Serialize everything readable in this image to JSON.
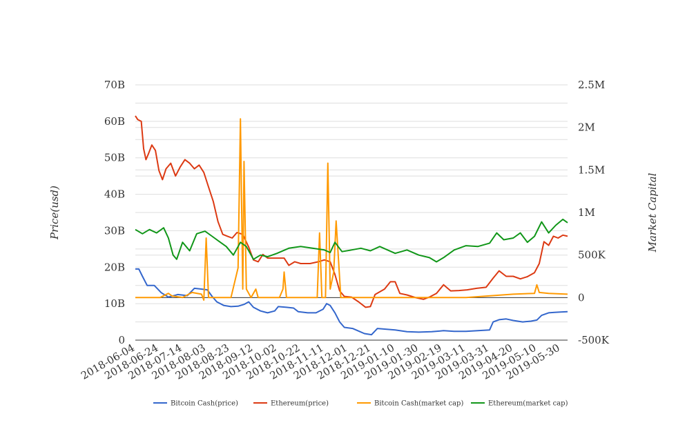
{
  "chart_data": {
    "type": "line",
    "title": "",
    "xlabel": "",
    "ylabel_left": "Price(usd)",
    "ylabel_right": "Market Capital",
    "left_axis": {
      "ylim": [
        0,
        70
      ],
      "ticks": [
        0,
        10,
        20,
        30,
        40,
        50,
        60,
        70
      ],
      "tick_labels": [
        "0",
        "10B",
        "20B",
        "30B",
        "40B",
        "50B",
        "60B",
        "70B"
      ]
    },
    "right_axis": {
      "ylim": [
        -500000,
        2500000
      ],
      "ticks": [
        -500000,
        0,
        500000,
        1000000,
        1500000,
        2000000,
        2500000
      ],
      "tick_labels": [
        "-500K",
        "0",
        "500K",
        "1M",
        "1.5M",
        "2M",
        "2.5M"
      ]
    },
    "x_range": [
      "2018-06-04",
      "2019-06-05"
    ],
    "x_tick_labels": [
      "2018-06-04",
      "2018-06-24",
      "2018-07-14",
      "2018-08-03",
      "2018-08-23",
      "2018-09-12",
      "2018-10-02",
      "2018-10-22",
      "2018-11-11",
      "2018-12-01",
      "2018-12-21",
      "2019-01-10",
      "2019-01-30",
      "2019-02-19",
      "2019-03-11",
      "2019-03-31",
      "2019-04-20",
      "2019-05-10",
      "2019-05-30"
    ],
    "grid": true,
    "legend_position": "bottom",
    "series": [
      {
        "name": "Bitcoin Cash(price)",
        "axis": "left",
        "color": "#3366cc",
        "points": [
          [
            "2018-06-04",
            19.5
          ],
          [
            "2018-06-07",
            19.5
          ],
          [
            "2018-06-10",
            17.5
          ],
          [
            "2018-06-14",
            15.0
          ],
          [
            "2018-06-20",
            15.0
          ],
          [
            "2018-06-26",
            13.0
          ],
          [
            "2018-07-02",
            11.8
          ],
          [
            "2018-07-10",
            12.5
          ],
          [
            "2018-07-18",
            12.2
          ],
          [
            "2018-07-24",
            14.2
          ],
          [
            "2018-07-30",
            14.0
          ],
          [
            "2018-08-04",
            13.8
          ],
          [
            "2018-08-08",
            12.0
          ],
          [
            "2018-08-12",
            10.5
          ],
          [
            "2018-08-18",
            9.5
          ],
          [
            "2018-08-24",
            9.2
          ],
          [
            "2018-08-30",
            9.3
          ],
          [
            "2018-09-04",
            9.8
          ],
          [
            "2018-09-08",
            10.5
          ],
          [
            "2018-09-12",
            9.0
          ],
          [
            "2018-09-18",
            8.0
          ],
          [
            "2018-09-24",
            7.5
          ],
          [
            "2018-09-30",
            8.0
          ],
          [
            "2018-10-03",
            9.2
          ],
          [
            "2018-10-10",
            9.0
          ],
          [
            "2018-10-16",
            8.8
          ],
          [
            "2018-10-20",
            7.8
          ],
          [
            "2018-10-28",
            7.5
          ],
          [
            "2018-11-04",
            7.5
          ],
          [
            "2018-11-10",
            8.5
          ],
          [
            "2018-11-13",
            10.0
          ],
          [
            "2018-11-16",
            9.5
          ],
          [
            "2018-11-20",
            7.5
          ],
          [
            "2018-11-24",
            5.0
          ],
          [
            "2018-11-28",
            3.5
          ],
          [
            "2018-12-05",
            3.2
          ],
          [
            "2018-12-10",
            2.5
          ],
          [
            "2018-12-15",
            1.8
          ],
          [
            "2018-12-21",
            1.5
          ],
          [
            "2018-12-26",
            3.2
          ],
          [
            "2019-01-02",
            3.0
          ],
          [
            "2019-01-10",
            2.8
          ],
          [
            "2019-01-20",
            2.3
          ],
          [
            "2019-01-30",
            2.2
          ],
          [
            "2019-02-10",
            2.3
          ],
          [
            "2019-02-20",
            2.6
          ],
          [
            "2019-03-01",
            2.4
          ],
          [
            "2019-03-11",
            2.4
          ],
          [
            "2019-03-21",
            2.6
          ],
          [
            "2019-03-31",
            2.8
          ],
          [
            "2019-04-03",
            5.0
          ],
          [
            "2019-04-08",
            5.6
          ],
          [
            "2019-04-14",
            5.8
          ],
          [
            "2019-04-20",
            5.4
          ],
          [
            "2019-04-28",
            5.0
          ],
          [
            "2019-05-05",
            5.2
          ],
          [
            "2019-05-10",
            5.5
          ],
          [
            "2019-05-14",
            6.8
          ],
          [
            "2019-05-20",
            7.5
          ],
          [
            "2019-05-25",
            7.6
          ],
          [
            "2019-05-30",
            7.7
          ],
          [
            "2019-06-05",
            7.8
          ]
        ]
      },
      {
        "name": "Ethereum(price)",
        "axis": "left",
        "color": "#dc3912",
        "points": [
          [
            "2018-06-04",
            61.5
          ],
          [
            "2018-06-06",
            60.5
          ],
          [
            "2018-06-09",
            60.0
          ],
          [
            "2018-06-11",
            52.5
          ],
          [
            "2018-06-13",
            49.5
          ],
          [
            "2018-06-15",
            51.0
          ],
          [
            "2018-06-18",
            53.5
          ],
          [
            "2018-06-21",
            52.0
          ],
          [
            "2018-06-24",
            46.5
          ],
          [
            "2018-06-27",
            44.0
          ],
          [
            "2018-06-30",
            47.0
          ],
          [
            "2018-07-04",
            48.5
          ],
          [
            "2018-07-08",
            45.0
          ],
          [
            "2018-07-12",
            47.5
          ],
          [
            "2018-07-16",
            49.5
          ],
          [
            "2018-07-20",
            48.5
          ],
          [
            "2018-07-24",
            47.0
          ],
          [
            "2018-07-28",
            48.0
          ],
          [
            "2018-08-01",
            46.0
          ],
          [
            "2018-08-05",
            42.0
          ],
          [
            "2018-08-09",
            38.0
          ],
          [
            "2018-08-13",
            32.5
          ],
          [
            "2018-08-17",
            29.0
          ],
          [
            "2018-08-21",
            28.5
          ],
          [
            "2018-08-25",
            28.0
          ],
          [
            "2018-08-29",
            29.5
          ],
          [
            "2018-09-03",
            29.0
          ],
          [
            "2018-09-08",
            25.5
          ],
          [
            "2018-09-12",
            22.0
          ],
          [
            "2018-09-16",
            21.5
          ],
          [
            "2018-09-20",
            23.5
          ],
          [
            "2018-09-24",
            22.5
          ],
          [
            "2018-09-28",
            22.5
          ],
          [
            "2018-10-02",
            22.5
          ],
          [
            "2018-10-08",
            22.5
          ],
          [
            "2018-10-12",
            20.5
          ],
          [
            "2018-10-17",
            21.5
          ],
          [
            "2018-10-22",
            21.0
          ],
          [
            "2018-10-30",
            21.0
          ],
          [
            "2018-11-06",
            21.5
          ],
          [
            "2018-11-11",
            22.0
          ],
          [
            "2018-11-16",
            21.5
          ],
          [
            "2018-11-20",
            18.0
          ],
          [
            "2018-11-24",
            13.5
          ],
          [
            "2018-11-28",
            12.0
          ],
          [
            "2018-12-04",
            11.8
          ],
          [
            "2018-12-10",
            10.5
          ],
          [
            "2018-12-16",
            9.0
          ],
          [
            "2018-12-20",
            9.2
          ],
          [
            "2018-12-24",
            12.5
          ],
          [
            "2019-01-01",
            14.0
          ],
          [
            "2019-01-06",
            16.0
          ],
          [
            "2019-01-10",
            16.0
          ],
          [
            "2019-01-14",
            12.8
          ],
          [
            "2019-01-20",
            12.4
          ],
          [
            "2019-01-28",
            11.6
          ],
          [
            "2019-02-03",
            11.2
          ],
          [
            "2019-02-08",
            11.8
          ],
          [
            "2019-02-14",
            12.8
          ],
          [
            "2019-02-20",
            15.2
          ],
          [
            "2019-02-26",
            13.5
          ],
          [
            "2019-03-05",
            13.6
          ],
          [
            "2019-03-12",
            13.8
          ],
          [
            "2019-03-20",
            14.2
          ],
          [
            "2019-03-28",
            14.5
          ],
          [
            "2019-04-03",
            17.0
          ],
          [
            "2019-04-08",
            19.0
          ],
          [
            "2019-04-14",
            17.5
          ],
          [
            "2019-04-20",
            17.5
          ],
          [
            "2019-04-26",
            16.8
          ],
          [
            "2019-05-02",
            17.4
          ],
          [
            "2019-05-08",
            18.5
          ],
          [
            "2019-05-12",
            21.0
          ],
          [
            "2019-05-16",
            27.0
          ],
          [
            "2019-05-20",
            26.0
          ],
          [
            "2019-05-24",
            28.5
          ],
          [
            "2019-05-28",
            28.0
          ],
          [
            "2019-06-01",
            28.8
          ],
          [
            "2019-06-05",
            28.5
          ]
        ]
      },
      {
        "name": "Bitcoin Cash(market cap)",
        "axis": "right",
        "color": "#ff9900",
        "points": [
          [
            "2018-06-04",
            0
          ],
          [
            "2018-06-25",
            0
          ],
          [
            "2018-07-02",
            50000
          ],
          [
            "2018-07-05",
            20000
          ],
          [
            "2018-07-14",
            0
          ],
          [
            "2018-07-22",
            60000
          ],
          [
            "2018-07-30",
            40000
          ],
          [
            "2018-08-01",
            -30000
          ],
          [
            "2018-08-03",
            700000
          ],
          [
            "2018-08-05",
            0
          ],
          [
            "2018-08-24",
            0
          ],
          [
            "2018-08-30",
            350000
          ],
          [
            "2018-09-01",
            2100000
          ],
          [
            "2018-09-03",
            100000
          ],
          [
            "2018-09-04",
            1600000
          ],
          [
            "2018-09-06",
            100000
          ],
          [
            "2018-09-10",
            0
          ],
          [
            "2018-09-14",
            100000
          ],
          [
            "2018-09-16",
            0
          ],
          [
            "2018-10-04",
            0
          ],
          [
            "2018-10-07",
            100000
          ],
          [
            "2018-10-08",
            300000
          ],
          [
            "2018-10-10",
            0
          ],
          [
            "2018-10-22",
            0
          ],
          [
            "2018-11-05",
            0
          ],
          [
            "2018-11-07",
            760000
          ],
          [
            "2018-11-09",
            0
          ],
          [
            "2018-11-12",
            0
          ],
          [
            "2018-11-14",
            1580000
          ],
          [
            "2018-11-16",
            100000
          ],
          [
            "2018-11-19",
            300000
          ],
          [
            "2018-11-21",
            900000
          ],
          [
            "2018-11-23",
            450000
          ],
          [
            "2018-11-25",
            0
          ],
          [
            "2019-01-10",
            0
          ],
          [
            "2019-03-11",
            0
          ],
          [
            "2019-04-20",
            40000
          ],
          [
            "2019-05-08",
            50000
          ],
          [
            "2019-05-10",
            150000
          ],
          [
            "2019-05-12",
            60000
          ],
          [
            "2019-05-20",
            50000
          ],
          [
            "2019-06-05",
            40000
          ]
        ]
      },
      {
        "name": "Ethereum(market cap)",
        "axis": "right",
        "color": "#109618",
        "points": [
          [
            "2018-06-04",
            800000
          ],
          [
            "2018-06-10",
            750000
          ],
          [
            "2018-06-16",
            800000
          ],
          [
            "2018-06-22",
            760000
          ],
          [
            "2018-06-28",
            820000
          ],
          [
            "2018-07-02",
            700000
          ],
          [
            "2018-07-06",
            500000
          ],
          [
            "2018-07-09",
            450000
          ],
          [
            "2018-07-14",
            650000
          ],
          [
            "2018-07-20",
            550000
          ],
          [
            "2018-07-26",
            750000
          ],
          [
            "2018-08-02",
            780000
          ],
          [
            "2018-08-08",
            720000
          ],
          [
            "2018-08-14",
            660000
          ],
          [
            "2018-08-20",
            600000
          ],
          [
            "2018-08-26",
            500000
          ],
          [
            "2018-09-01",
            650000
          ],
          [
            "2018-09-06",
            600000
          ],
          [
            "2018-09-12",
            450000
          ],
          [
            "2018-09-18",
            500000
          ],
          [
            "2018-09-24",
            480000
          ],
          [
            "2018-10-02",
            520000
          ],
          [
            "2018-10-12",
            580000
          ],
          [
            "2018-10-22",
            600000
          ],
          [
            "2018-11-01",
            580000
          ],
          [
            "2018-11-11",
            560000
          ],
          [
            "2018-11-16",
            530000
          ],
          [
            "2018-11-20",
            650000
          ],
          [
            "2018-11-26",
            540000
          ],
          [
            "2018-12-04",
            560000
          ],
          [
            "2018-12-12",
            580000
          ],
          [
            "2018-12-20",
            550000
          ],
          [
            "2018-12-28",
            600000
          ],
          [
            "2019-01-10",
            520000
          ],
          [
            "2019-01-20",
            560000
          ],
          [
            "2019-01-30",
            500000
          ],
          [
            "2019-02-08",
            470000
          ],
          [
            "2019-02-14",
            420000
          ],
          [
            "2019-02-20",
            470000
          ],
          [
            "2019-03-01",
            560000
          ],
          [
            "2019-03-11",
            610000
          ],
          [
            "2019-03-21",
            600000
          ],
          [
            "2019-03-31",
            640000
          ],
          [
            "2019-04-06",
            760000
          ],
          [
            "2019-04-12",
            680000
          ],
          [
            "2019-04-20",
            700000
          ],
          [
            "2019-04-26",
            760000
          ],
          [
            "2019-05-02",
            650000
          ],
          [
            "2019-05-08",
            720000
          ],
          [
            "2019-05-14",
            890000
          ],
          [
            "2019-05-20",
            760000
          ],
          [
            "2019-05-26",
            850000
          ],
          [
            "2019-06-01",
            920000
          ],
          [
            "2019-06-05",
            880000
          ]
        ]
      }
    ]
  }
}
